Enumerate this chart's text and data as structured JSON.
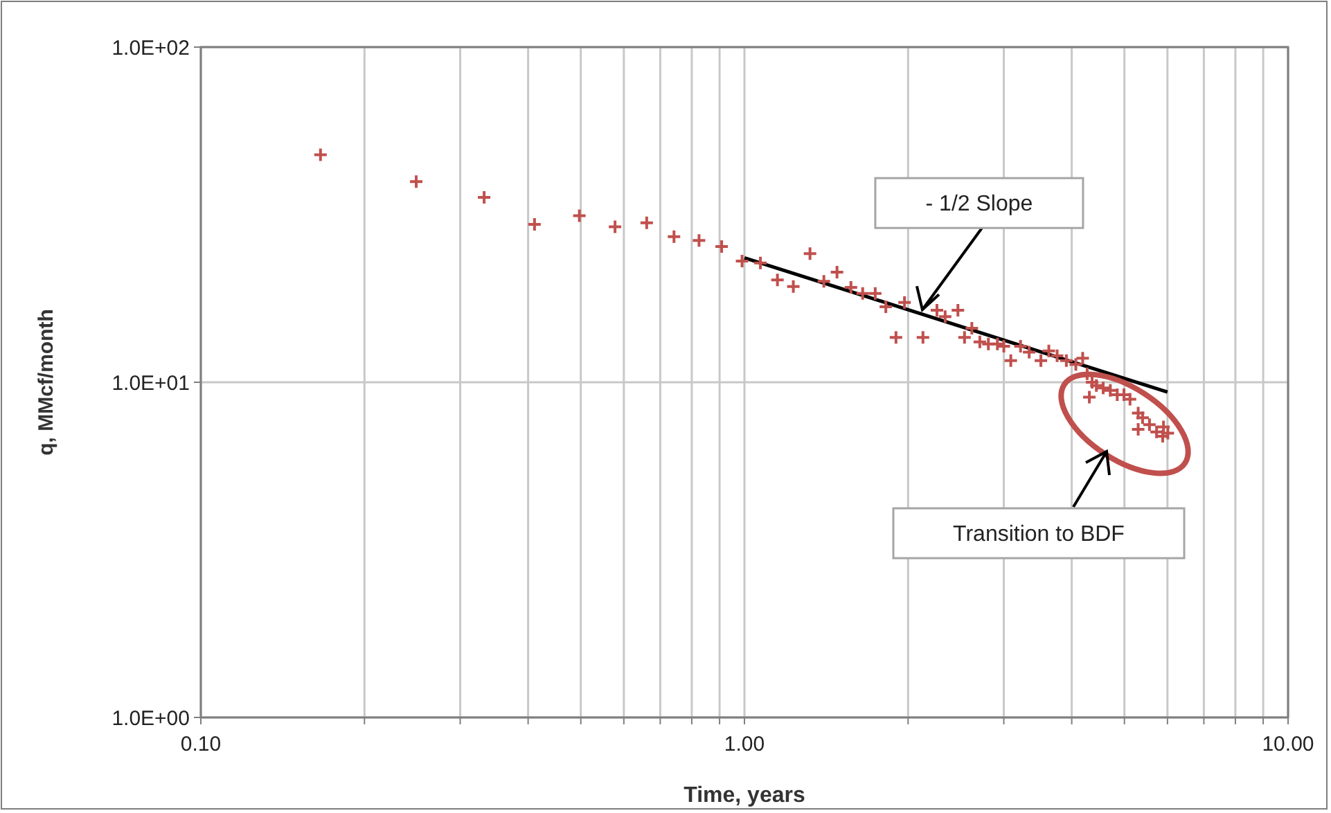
{
  "chart_data": {
    "type": "scatter",
    "xlabel": "Time, years",
    "ylabel": "q, MMcf/month",
    "log": "xy",
    "grid": true,
    "marker": "cross",
    "xlim": [
      0.1,
      10
    ],
    "ylim": [
      1,
      100
    ],
    "xticks": [
      {
        "value": 0.1,
        "label": "0.10"
      },
      {
        "value": 0.2,
        "label": null
      },
      {
        "value": 0.3,
        "label": null
      },
      {
        "value": 0.4,
        "label": null
      },
      {
        "value": 0.5,
        "label": null
      },
      {
        "value": 0.6,
        "label": null
      },
      {
        "value": 0.7,
        "label": null
      },
      {
        "value": 0.8,
        "label": null
      },
      {
        "value": 0.9,
        "label": null
      },
      {
        "value": 1,
        "label": "1.00"
      },
      {
        "value": 2,
        "label": null
      },
      {
        "value": 3,
        "label": null
      },
      {
        "value": 4,
        "label": null
      },
      {
        "value": 5,
        "label": null
      },
      {
        "value": 6,
        "label": null
      },
      {
        "value": 7,
        "label": null
      },
      {
        "value": 8,
        "label": null
      },
      {
        "value": 9,
        "label": null
      },
      {
        "value": 10,
        "label": "10.00"
      }
    ],
    "yticks": [
      {
        "value": 1,
        "label": "1.0E+00"
      },
      {
        "value": 10,
        "label": "1.0E+01"
      },
      {
        "value": 100,
        "label": "1.0E+02"
      }
    ],
    "series": [
      {
        "color": "#c0504d",
        "x": [
          0.166,
          0.249,
          0.332,
          0.411,
          0.497,
          0.578,
          0.661,
          0.742,
          0.825,
          0.908,
          0.99,
          1.07,
          1.15,
          1.23,
          1.32,
          1.4,
          1.48,
          1.57,
          1.65,
          1.74,
          1.82,
          1.9,
          1.97,
          2.13,
          2.26,
          2.34,
          2.47,
          2.54,
          2.62,
          2.71,
          2.81,
          2.92,
          3.0,
          3.09,
          3.22,
          3.34,
          3.51,
          3.63,
          3.76,
          3.91,
          4.07,
          4.19,
          4.27,
          4.36,
          4.44,
          4.31,
          4.57,
          4.71,
          4.85,
          4.99,
          5.12,
          5.3,
          5.4,
          5.3,
          5.56,
          5.73,
          5.9,
          5.88,
          6.01
        ],
        "values": [
          47.7,
          39.7,
          35.6,
          29.6,
          31.4,
          29.1,
          29.9,
          27.2,
          26.5,
          25.4,
          23.0,
          22.7,
          20.2,
          19.3,
          24.2,
          20.0,
          21.3,
          19.2,
          18.4,
          18.4,
          16.8,
          13.6,
          17.3,
          13.6,
          16.4,
          15.7,
          16.4,
          13.6,
          14.5,
          13.2,
          13.0,
          13.0,
          12.8,
          11.6,
          12.8,
          12.3,
          11.6,
          12.4,
          12.0,
          11.6,
          11.3,
          11.8,
          10.6,
          10.0,
          9.78,
          9.03,
          9.61,
          9.46,
          9.18,
          9.18,
          8.9,
          8.09,
          7.84,
          7.24,
          7.47,
          7.11,
          7.36,
          6.9,
          7.05
        ]
      },
      {
        "type": "line",
        "color": "#000000",
        "marker": "none",
        "x": [
          1.0,
          6.0
        ],
        "values": [
          23.5,
          9.35
        ]
      }
    ],
    "annotations": [
      {
        "text": "- 1/2 Slope",
        "x": 2.1,
        "y": 16
      },
      "Transition to BDF"
    ]
  }
}
